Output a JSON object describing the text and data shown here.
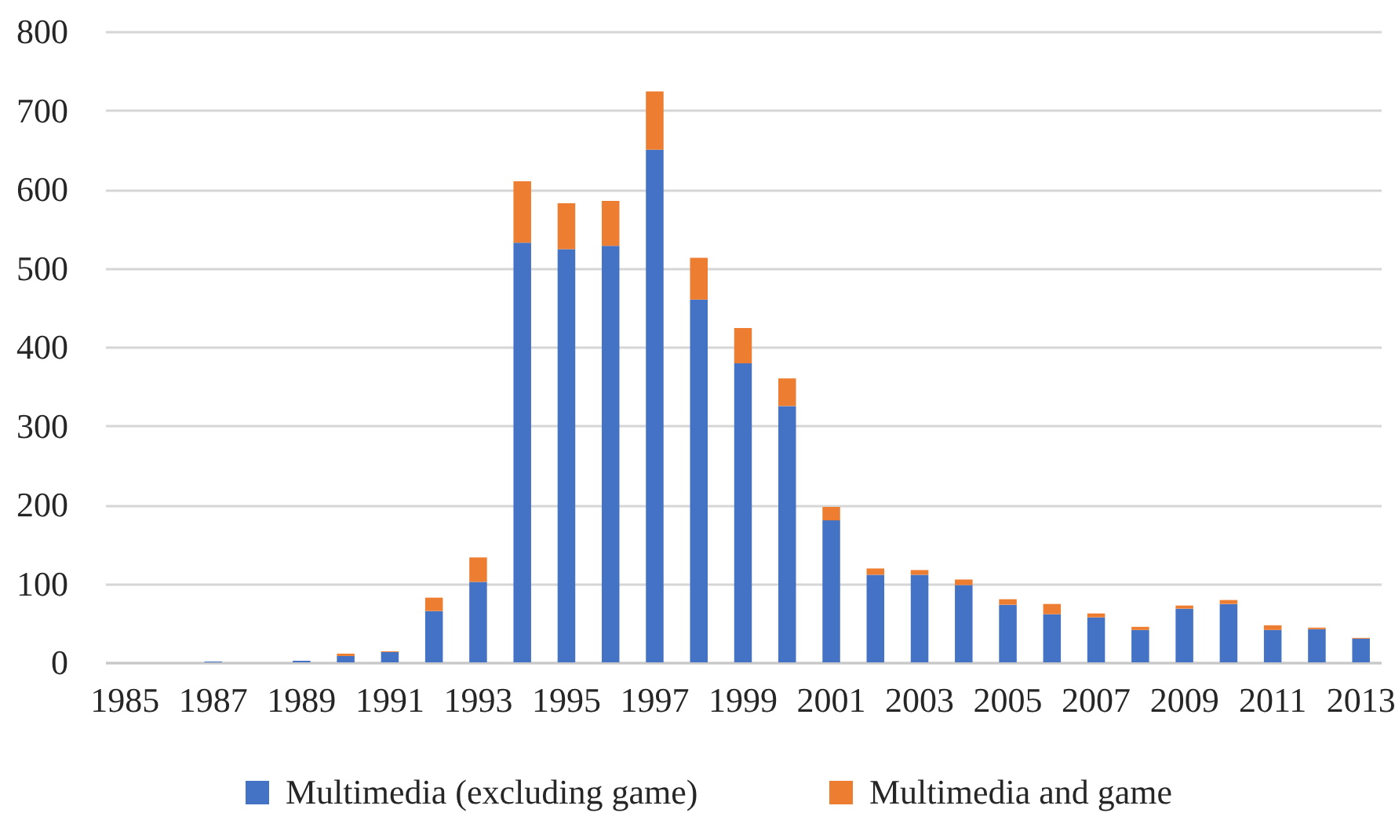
{
  "chart_data": {
    "type": "bar",
    "stacked": true,
    "categories": [
      "1985",
      null,
      "1987",
      null,
      "1989",
      null,
      "1991",
      null,
      "1993",
      null,
      "1995",
      null,
      "1997",
      null,
      "1999",
      null,
      "2001",
      null,
      "2003",
      null,
      "2005",
      null,
      "2007",
      null,
      "2009",
      null,
      "2011",
      null,
      "2013"
    ],
    "series": [
      {
        "name": "Multimedia (excluding game)",
        "color": "#4472c4",
        "values": [
          0,
          0,
          1,
          0,
          2,
          8,
          13,
          65,
          102,
          532,
          524,
          528,
          650,
          460,
          379,
          325,
          180,
          111,
          111,
          98,
          73,
          61,
          57,
          41,
          68,
          74,
          41,
          42,
          30
        ]
      },
      {
        "name": "Multimedia and game",
        "color": "#ed7d31",
        "values": [
          0,
          0,
          0,
          0,
          0,
          3,
          1,
          17,
          31,
          78,
          58,
          57,
          74,
          53,
          45,
          35,
          17,
          8,
          6,
          7,
          7,
          13,
          5,
          4,
          4,
          5,
          6,
          2,
          1
        ]
      }
    ],
    "ylim": [
      0,
      800
    ],
    "yticks": [
      0,
      100,
      200,
      300,
      400,
      500,
      600,
      700,
      800
    ],
    "grid": "y",
    "legend": "bottom"
  }
}
